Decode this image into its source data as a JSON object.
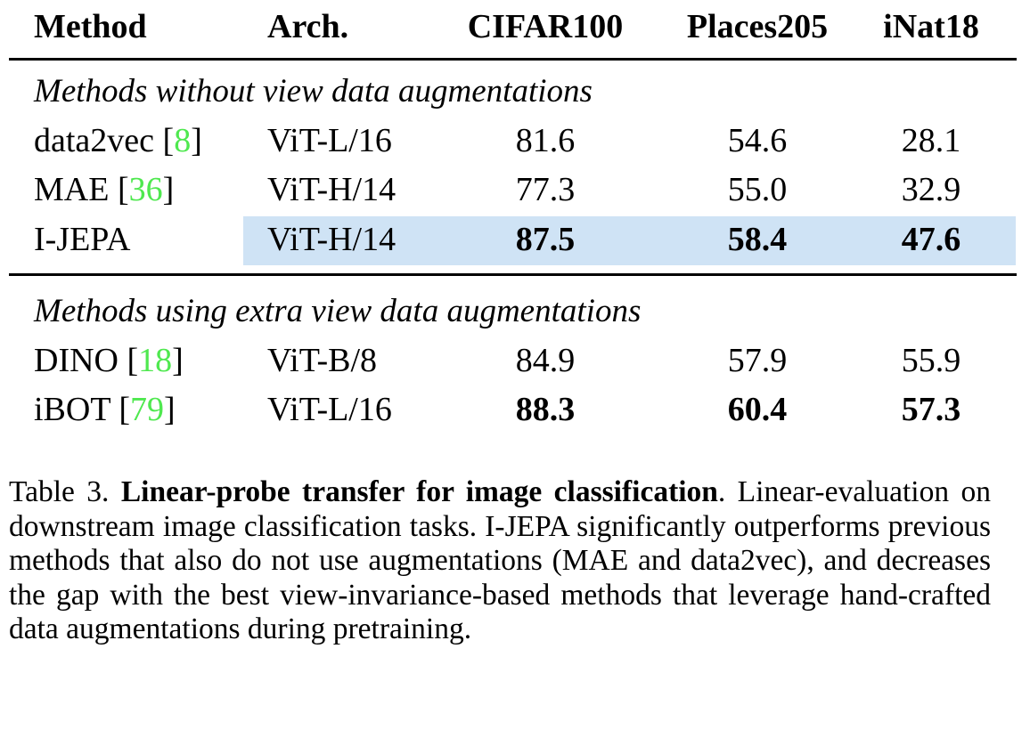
{
  "table": {
    "headers": [
      "Method",
      "Arch.",
      "CIFAR100",
      "Places205",
      "iNat18"
    ],
    "sections": [
      {
        "title": "Methods without view data augmentations",
        "rows": [
          {
            "method": "data2vec",
            "ref": "8",
            "arch": "ViT-L/16",
            "values": [
              "81.6",
              "54.6",
              "28.1"
            ],
            "bold": [
              false,
              false,
              false
            ],
            "highlight": false
          },
          {
            "method": "MAE",
            "ref": "36",
            "arch": "ViT-H/14",
            "values": [
              "77.3",
              "55.0",
              "32.9"
            ],
            "bold": [
              false,
              false,
              false
            ],
            "highlight": false
          },
          {
            "method": "I-JEPA",
            "ref": null,
            "arch": "ViT-H/14",
            "values": [
              "87.5",
              "58.4",
              "47.6"
            ],
            "bold": [
              true,
              true,
              true
            ],
            "highlight": true
          }
        ]
      },
      {
        "title": "Methods using extra view data augmentations",
        "rows": [
          {
            "method": "DINO",
            "ref": "18",
            "arch": "ViT-B/8",
            "values": [
              "84.9",
              "57.9",
              "55.9"
            ],
            "bold": [
              false,
              false,
              false
            ],
            "highlight": false
          },
          {
            "method": "iBOT",
            "ref": "79",
            "arch": "ViT-L/16",
            "values": [
              "88.3",
              "60.4",
              "57.3"
            ],
            "bold": [
              true,
              true,
              true
            ],
            "highlight": false
          }
        ]
      }
    ],
    "highlight_color": "#cfe3f5",
    "ref_color": "#4fe84f"
  },
  "caption": {
    "label": "Table 3.",
    "title": "Linear-probe transfer for image classification",
    "body": ". Linear-evaluation on downstream image classification tasks. I-JEPA significantly outperforms previous methods that also do not use augmentations (MAE and data2vec), and decreases the gap with the best view-invariance-based methods that leverage hand-crafted data augmentations during pretraining."
  }
}
